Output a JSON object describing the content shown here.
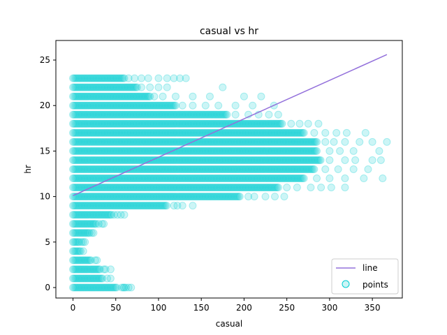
{
  "chart_data": {
    "type": "scatter",
    "title": "casual vs hr",
    "xlabel": "casual",
    "ylabel": "hr",
    "xlim": [
      -20,
      385
    ],
    "ylim": [
      -1.15,
      27.15
    ],
    "xticks": [
      0,
      50,
      100,
      150,
      200,
      250,
      300,
      350
    ],
    "yticks": [
      0,
      5,
      10,
      15,
      20,
      25
    ],
    "grid": false,
    "legend_position": "bottom-right",
    "colors": {
      "points": "#00ced1",
      "line": "#9370db"
    },
    "series": [
      {
        "name": "line",
        "kind": "line",
        "x": [
          0,
          367
        ],
        "y": [
          10.1,
          25.6
        ]
      },
      {
        "name": "points",
        "kind": "scatter",
        "hour_ranges": [
          {
            "hr": 0,
            "dense_max": 52,
            "outliers": [
              57,
              59,
              60,
              62,
              65,
              68
            ]
          },
          {
            "hr": 1,
            "dense_max": 35,
            "outliers": [
              40,
              44
            ]
          },
          {
            "hr": 2,
            "dense_max": 32,
            "outliers": [
              36,
              38,
              44
            ]
          },
          {
            "hr": 3,
            "dense_max": 22,
            "outliers": [
              26,
              28
            ]
          },
          {
            "hr": 4,
            "dense_max": 10,
            "outliers": [
              12
            ]
          },
          {
            "hr": 5,
            "dense_max": 8,
            "outliers": [
              10,
              12,
              14
            ]
          },
          {
            "hr": 6,
            "dense_max": 20,
            "outliers": [
              22,
              24
            ]
          },
          {
            "hr": 7,
            "dense_max": 28,
            "outliers": [
              30,
              34,
              36
            ]
          },
          {
            "hr": 8,
            "dense_max": 45,
            "outliers": [
              48,
              52,
              56,
              60
            ]
          },
          {
            "hr": 9,
            "dense_max": 110,
            "outliers": [
              118,
              122,
              128,
              140
            ]
          },
          {
            "hr": 10,
            "dense_max": 195,
            "outliers": [
              205,
              212,
              225,
              236,
              247
            ]
          },
          {
            "hr": 11,
            "dense_max": 240,
            "outliers": [
              250,
              262,
              278,
              290,
              302,
              318
            ]
          },
          {
            "hr": 12,
            "dense_max": 270,
            "outliers": [
              285,
              300,
              318,
              340,
              362
            ]
          },
          {
            "hr": 13,
            "dense_max": 282,
            "outliers": [
              295,
              310,
              328,
              345
            ]
          },
          {
            "hr": 14,
            "dense_max": 290,
            "outliers": [
              300,
              318,
              330,
              350,
              360
            ]
          },
          {
            "hr": 15,
            "dense_max": 285,
            "outliers": [
              300,
              312,
              328,
              358
            ]
          },
          {
            "hr": 16,
            "dense_max": 285,
            "outliers": [
              295,
              305,
              318,
              335,
              350,
              367
            ]
          },
          {
            "hr": 17,
            "dense_max": 270,
            "outliers": [
              282,
              295,
              308,
              320,
              342
            ]
          },
          {
            "hr": 18,
            "dense_max": 245,
            "outliers": [
              255,
              265,
              275,
              287
            ]
          },
          {
            "hr": 19,
            "dense_max": 180,
            "outliers": [
              190,
              205,
              217,
              229,
              240
            ]
          },
          {
            "hr": 20,
            "dense_max": 120,
            "outliers": [
              128,
              140,
              155,
              170,
              190,
              210,
              235
            ]
          },
          {
            "hr": 21,
            "dense_max": 90,
            "outliers": [
              95,
              105,
              120,
              140,
              160,
              200,
              220
            ]
          },
          {
            "hr": 22,
            "dense_max": 75,
            "outliers": [
              80,
              90,
              100,
              110,
              175
            ]
          },
          {
            "hr": 23,
            "dense_max": 60,
            "outliers": [
              65,
              72,
              80,
              88,
              100,
              110,
              118,
              125,
              132
            ]
          }
        ]
      }
    ]
  }
}
